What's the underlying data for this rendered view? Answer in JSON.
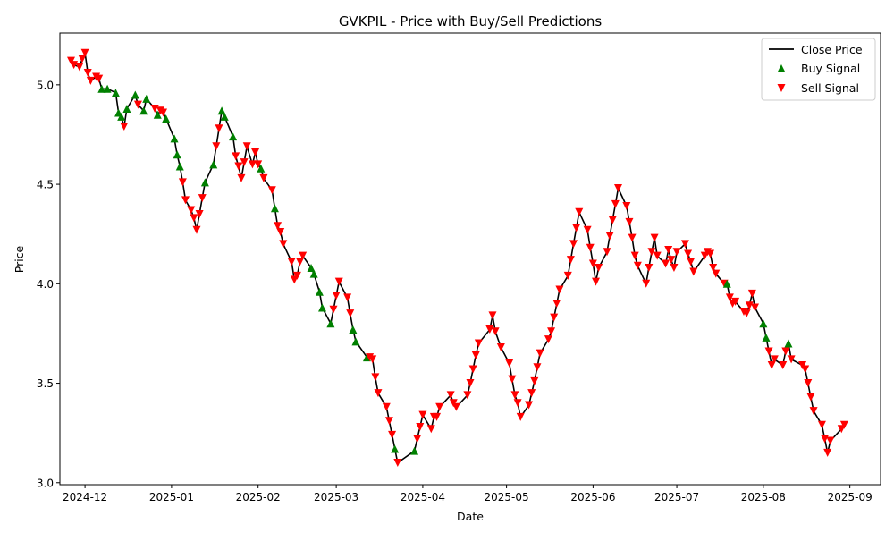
{
  "chart_data": {
    "type": "line",
    "title": "GVKPIL - Price with Buy/Sell Predictions",
    "xlabel": "Date",
    "ylabel": "Price",
    "xlim": [
      "2024-11-22",
      "2025-09-12"
    ],
    "ylim": [
      2.99,
      5.26
    ],
    "x_ticks": [
      "2024-12",
      "2025-01",
      "2025-02",
      "2025-03",
      "2025-04",
      "2025-05",
      "2025-06",
      "2025-07",
      "2025-08",
      "2025-09"
    ],
    "x_tick_dates": [
      "2024-12-01",
      "2025-01-01",
      "2025-02-01",
      "2025-03-01",
      "2025-04-01",
      "2025-05-01",
      "2025-06-01",
      "2025-07-01",
      "2025-08-01",
      "2025-09-01"
    ],
    "y_ticks": [
      "3.0",
      "3.5",
      "4.0",
      "4.5",
      "5.0"
    ],
    "y_tick_values": [
      3.0,
      3.5,
      4.0,
      4.5,
      5.0
    ],
    "grid": false,
    "legend": {
      "position": "top-right",
      "entries": [
        {
          "label": "Close Price",
          "marker": "line",
          "color": "#000000"
        },
        {
          "label": "Buy Signal",
          "marker": "triangle-up",
          "color": "#008000"
        },
        {
          "label": "Sell Signal",
          "marker": "triangle-down",
          "color": "#ff0000"
        }
      ]
    },
    "series": [
      {
        "name": "Close Price",
        "color": "#000000",
        "points": [
          [
            "2024-11-26",
            5.12,
            "sell"
          ],
          [
            "2024-11-27",
            5.1,
            "sell"
          ],
          [
            "2024-11-29",
            5.09,
            "sell"
          ],
          [
            "2024-11-30",
            5.13,
            "sell"
          ],
          [
            "2024-12-01",
            5.16,
            "sell"
          ],
          [
            "2024-12-02",
            5.06,
            "sell"
          ],
          [
            "2024-12-03",
            5.02,
            "sell"
          ],
          [
            "2024-12-05",
            5.04,
            "sell"
          ],
          [
            "2024-12-06",
            5.03,
            "sell"
          ],
          [
            "2024-12-07",
            4.98,
            "buy"
          ],
          [
            "2024-12-09",
            4.98,
            "buy"
          ],
          [
            "2024-12-12",
            4.96,
            "buy"
          ],
          [
            "2024-12-13",
            4.86,
            "buy"
          ],
          [
            "2024-12-14",
            4.84,
            "buy"
          ],
          [
            "2024-12-15",
            4.79,
            "sell"
          ],
          [
            "2024-12-16",
            4.88,
            "buy"
          ],
          [
            "2024-12-19",
            4.95,
            "buy"
          ],
          [
            "2024-12-20",
            4.9,
            "sell"
          ],
          [
            "2024-12-22",
            4.87,
            "buy"
          ],
          [
            "2024-12-23",
            4.93,
            "buy"
          ],
          [
            "2024-12-26",
            4.88,
            "sell"
          ],
          [
            "2024-12-27",
            4.85,
            "buy"
          ],
          [
            "2024-12-28",
            4.87,
            "sell"
          ],
          [
            "2024-12-29",
            4.86,
            "sell"
          ],
          [
            "2024-12-30",
            4.83,
            "buy"
          ],
          [
            "2025-01-02",
            4.73,
            "buy"
          ],
          [
            "2025-01-03",
            4.65,
            "buy"
          ],
          [
            "2025-01-04",
            4.59,
            "buy"
          ],
          [
            "2025-01-05",
            4.51,
            "sell"
          ],
          [
            "2025-01-06",
            4.42,
            "sell"
          ],
          [
            "2025-01-08",
            4.37,
            "sell"
          ],
          [
            "2025-01-09",
            4.33,
            "sell"
          ],
          [
            "2025-01-10",
            4.27,
            "sell"
          ],
          [
            "2025-01-11",
            4.35,
            "sell"
          ],
          [
            "2025-01-12",
            4.43,
            "sell"
          ],
          [
            "2025-01-13",
            4.51,
            "buy"
          ],
          [
            "2025-01-16",
            4.6,
            "buy"
          ],
          [
            "2025-01-17",
            4.69,
            "sell"
          ],
          [
            "2025-01-18",
            4.78,
            "sell"
          ],
          [
            "2025-01-19",
            4.87,
            "buy"
          ],
          [
            "2025-01-20",
            4.84,
            "buy"
          ],
          [
            "2025-01-23",
            4.74,
            "buy"
          ],
          [
            "2025-01-24",
            4.64,
            "sell"
          ],
          [
            "2025-01-25",
            4.59,
            "sell"
          ],
          [
            "2025-01-26",
            4.53,
            "sell"
          ],
          [
            "2025-01-27",
            4.61,
            "sell"
          ],
          [
            "2025-01-28",
            4.69,
            "sell"
          ],
          [
            "2025-01-30",
            4.6,
            "sell"
          ],
          [
            "2025-01-31",
            4.66,
            "sell"
          ],
          [
            "2025-02-01",
            4.6,
            "sell"
          ],
          [
            "2025-02-02",
            4.58,
            "buy"
          ],
          [
            "2025-02-03",
            4.53,
            "sell"
          ],
          [
            "2025-02-06",
            4.47,
            "sell"
          ],
          [
            "2025-02-07",
            4.38,
            "buy"
          ],
          [
            "2025-02-08",
            4.29,
            "sell"
          ],
          [
            "2025-02-09",
            4.26,
            "sell"
          ],
          [
            "2025-02-10",
            4.2,
            "sell"
          ],
          [
            "2025-02-13",
            4.11,
            "sell"
          ],
          [
            "2025-02-14",
            4.02,
            "sell"
          ],
          [
            "2025-02-15",
            4.04,
            "sell"
          ],
          [
            "2025-02-16",
            4.11,
            "sell"
          ],
          [
            "2025-02-17",
            4.14,
            "sell"
          ],
          [
            "2025-02-20",
            4.08,
            "buy"
          ],
          [
            "2025-02-21",
            4.05,
            "buy"
          ],
          [
            "2025-02-23",
            3.96,
            "buy"
          ],
          [
            "2025-02-24",
            3.88,
            "buy"
          ],
          [
            "2025-02-27",
            3.8,
            "buy"
          ],
          [
            "2025-02-28",
            3.87,
            "sell"
          ],
          [
            "2025-03-01",
            3.94,
            "sell"
          ],
          [
            "2025-03-02",
            4.01,
            "sell"
          ],
          [
            "2025-03-05",
            3.93,
            "sell"
          ],
          [
            "2025-03-06",
            3.85,
            "sell"
          ],
          [
            "2025-03-07",
            3.77,
            "buy"
          ],
          [
            "2025-03-08",
            3.71,
            "buy"
          ],
          [
            "2025-03-12",
            3.63,
            "buy"
          ],
          [
            "2025-03-13",
            3.63,
            "sell"
          ],
          [
            "2025-03-14",
            3.62,
            "sell"
          ],
          [
            "2025-03-15",
            3.53,
            "sell"
          ],
          [
            "2025-03-16",
            3.45,
            "sell"
          ],
          [
            "2025-03-19",
            3.38,
            "sell"
          ],
          [
            "2025-03-20",
            3.31,
            "sell"
          ],
          [
            "2025-03-21",
            3.24,
            "sell"
          ],
          [
            "2025-03-22",
            3.17,
            "buy"
          ],
          [
            "2025-03-23",
            3.1,
            "sell"
          ],
          [
            "2025-03-29",
            3.16,
            "buy"
          ],
          [
            "2025-03-30",
            3.22,
            "sell"
          ],
          [
            "2025-03-31",
            3.28,
            "sell"
          ],
          [
            "2025-04-01",
            3.34,
            "sell"
          ],
          [
            "2025-04-04",
            3.27,
            "sell"
          ],
          [
            "2025-04-05",
            3.33,
            "sell"
          ],
          [
            "2025-04-06",
            3.33,
            "sell"
          ],
          [
            "2025-04-07",
            3.38,
            "sell"
          ],
          [
            "2025-04-11",
            3.44,
            "sell"
          ],
          [
            "2025-04-12",
            3.4,
            "sell"
          ],
          [
            "2025-04-13",
            3.38,
            "sell"
          ],
          [
            "2025-04-17",
            3.44,
            "sell"
          ],
          [
            "2025-04-18",
            3.5,
            "sell"
          ],
          [
            "2025-04-19",
            3.57,
            "sell"
          ],
          [
            "2025-04-20",
            3.64,
            "sell"
          ],
          [
            "2025-04-21",
            3.7,
            "sell"
          ],
          [
            "2025-04-25",
            3.77,
            "sell"
          ],
          [
            "2025-04-26",
            3.84,
            "sell"
          ],
          [
            "2025-04-27",
            3.76,
            "sell"
          ],
          [
            "2025-04-29",
            3.68,
            "sell"
          ],
          [
            "2025-05-02",
            3.6,
            "sell"
          ],
          [
            "2025-05-03",
            3.52,
            "sell"
          ],
          [
            "2025-05-04",
            3.44,
            "sell"
          ],
          [
            "2025-05-05",
            3.4,
            "sell"
          ],
          [
            "2025-05-06",
            3.33,
            "sell"
          ],
          [
            "2025-05-09",
            3.39,
            "sell"
          ],
          [
            "2025-05-10",
            3.45,
            "sell"
          ],
          [
            "2025-05-11",
            3.51,
            "sell"
          ],
          [
            "2025-05-12",
            3.58,
            "sell"
          ],
          [
            "2025-05-13",
            3.65,
            "sell"
          ],
          [
            "2025-05-16",
            3.72,
            "sell"
          ],
          [
            "2025-05-17",
            3.76,
            "sell"
          ],
          [
            "2025-05-18",
            3.83,
            "sell"
          ],
          [
            "2025-05-19",
            3.9,
            "sell"
          ],
          [
            "2025-05-20",
            3.97,
            "sell"
          ],
          [
            "2025-05-23",
            4.04,
            "sell"
          ],
          [
            "2025-05-24",
            4.12,
            "sell"
          ],
          [
            "2025-05-25",
            4.2,
            "sell"
          ],
          [
            "2025-05-26",
            4.28,
            "sell"
          ],
          [
            "2025-05-27",
            4.36,
            "sell"
          ],
          [
            "2025-05-30",
            4.27,
            "sell"
          ],
          [
            "2025-05-31",
            4.18,
            "sell"
          ],
          [
            "2025-06-01",
            4.1,
            "sell"
          ],
          [
            "2025-06-02",
            4.01,
            "sell"
          ],
          [
            "2025-06-03",
            4.08,
            "sell"
          ],
          [
            "2025-06-06",
            4.16,
            "sell"
          ],
          [
            "2025-06-07",
            4.24,
            "sell"
          ],
          [
            "2025-06-08",
            4.32,
            "sell"
          ],
          [
            "2025-06-09",
            4.4,
            "sell"
          ],
          [
            "2025-06-10",
            4.48,
            "sell"
          ],
          [
            "2025-06-13",
            4.39,
            "sell"
          ],
          [
            "2025-06-14",
            4.31,
            "sell"
          ],
          [
            "2025-06-15",
            4.23,
            "sell"
          ],
          [
            "2025-06-16",
            4.14,
            "sell"
          ],
          [
            "2025-06-17",
            4.09,
            "sell"
          ],
          [
            "2025-06-20",
            4.0,
            "sell"
          ],
          [
            "2025-06-21",
            4.08,
            "sell"
          ],
          [
            "2025-06-22",
            4.16,
            "sell"
          ],
          [
            "2025-06-23",
            4.23,
            "sell"
          ],
          [
            "2025-06-24",
            4.14,
            "sell"
          ],
          [
            "2025-06-27",
            4.1,
            "sell"
          ],
          [
            "2025-06-28",
            4.17,
            "sell"
          ],
          [
            "2025-06-29",
            4.12,
            "sell"
          ],
          [
            "2025-06-30",
            4.08,
            "sell"
          ],
          [
            "2025-07-01",
            4.16,
            "sell"
          ],
          [
            "2025-07-04",
            4.2,
            "sell"
          ],
          [
            "2025-07-05",
            4.15,
            "sell"
          ],
          [
            "2025-07-06",
            4.11,
            "sell"
          ],
          [
            "2025-07-07",
            4.06,
            "sell"
          ],
          [
            "2025-07-11",
            4.14,
            "sell"
          ],
          [
            "2025-07-12",
            4.16,
            "sell"
          ],
          [
            "2025-07-13",
            4.15,
            "sell"
          ],
          [
            "2025-07-14",
            4.08,
            "sell"
          ],
          [
            "2025-07-15",
            4.05,
            "sell"
          ],
          [
            "2025-07-18",
            4.0,
            "sell"
          ],
          [
            "2025-07-19",
            4.0,
            "buy"
          ],
          [
            "2025-07-20",
            3.93,
            "sell"
          ],
          [
            "2025-07-21",
            3.9,
            "sell"
          ],
          [
            "2025-07-22",
            3.91,
            "sell"
          ],
          [
            "2025-07-25",
            3.86,
            "sell"
          ],
          [
            "2025-07-26",
            3.85,
            "sell"
          ],
          [
            "2025-07-27",
            3.89,
            "sell"
          ],
          [
            "2025-07-28",
            3.95,
            "sell"
          ],
          [
            "2025-07-29",
            3.88,
            "sell"
          ],
          [
            "2025-08-01",
            3.8,
            "buy"
          ],
          [
            "2025-08-02",
            3.73,
            "buy"
          ],
          [
            "2025-08-03",
            3.66,
            "sell"
          ],
          [
            "2025-08-04",
            3.59,
            "sell"
          ],
          [
            "2025-08-05",
            3.62,
            "sell"
          ],
          [
            "2025-08-08",
            3.59,
            "sell"
          ],
          [
            "2025-08-09",
            3.66,
            "sell"
          ],
          [
            "2025-08-10",
            3.7,
            "buy"
          ],
          [
            "2025-08-11",
            3.62,
            "sell"
          ],
          [
            "2025-08-15",
            3.59,
            "sell"
          ],
          [
            "2025-08-16",
            3.57,
            "sell"
          ],
          [
            "2025-08-17",
            3.5,
            "sell"
          ],
          [
            "2025-08-18",
            3.43,
            "sell"
          ],
          [
            "2025-08-19",
            3.36,
            "sell"
          ],
          [
            "2025-08-22",
            3.29,
            "sell"
          ],
          [
            "2025-08-23",
            3.22,
            "sell"
          ],
          [
            "2025-08-24",
            3.15,
            "sell"
          ],
          [
            "2025-08-25",
            3.21,
            "sell"
          ],
          [
            "2025-08-29",
            3.27,
            "sell"
          ],
          [
            "2025-08-30",
            3.29,
            "sell"
          ]
        ]
      }
    ]
  }
}
